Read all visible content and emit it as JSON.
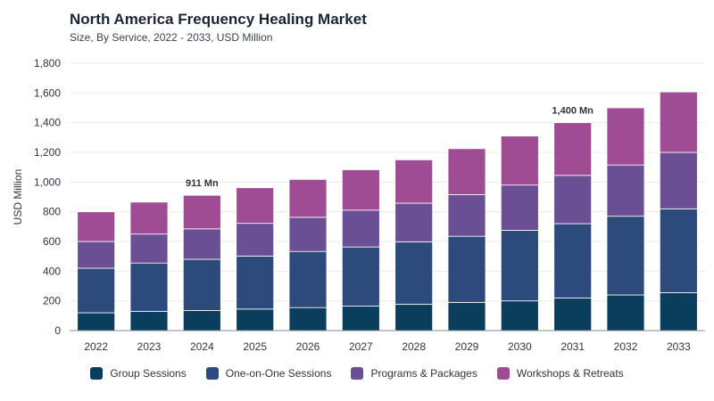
{
  "header": {
    "title": "North America Frequency Healing Market",
    "subtitle": "Size, By Service, 2022 - 2033, USD Million"
  },
  "chart_data": {
    "type": "bar",
    "stacked": true,
    "title": "North America Frequency Healing Market",
    "subtitle": "Size, By Service, 2022 - 2033, USD Million",
    "xlabel": "",
    "ylabel": "USD Million",
    "ylim": [
      0,
      1800
    ],
    "yticks": [
      0,
      200,
      400,
      600,
      800,
      1000,
      1200,
      1400,
      1600,
      1800
    ],
    "ytick_labels": [
      "0",
      "200",
      "400",
      "600",
      "800",
      "1,000",
      "1,200",
      "1,400",
      "1,600",
      "1,800"
    ],
    "grid": true,
    "legend_position": "bottom",
    "categories": [
      "2022",
      "2023",
      "2024",
      "2025",
      "2026",
      "2027",
      "2028",
      "2029",
      "2030",
      "2031",
      "2032",
      "2033"
    ],
    "series": [
      {
        "name": "Group Sessions",
        "color": "#0b3d5c",
        "values": [
          120,
          130,
          135,
          145,
          155,
          165,
          178,
          190,
          200,
          220,
          240,
          255
        ]
      },
      {
        "name": "One-on-One Sessions",
        "color": "#2d4a7c",
        "values": [
          300,
          325,
          345,
          357,
          378,
          398,
          420,
          445,
          475,
          500,
          530,
          565
        ]
      },
      {
        "name": "Programs & Packages",
        "color": "#6a4f94",
        "values": [
          180,
          195,
          205,
          220,
          230,
          248,
          260,
          280,
          305,
          325,
          345,
          380
        ]
      },
      {
        "name": "Workshops & Retreats",
        "color": "#a04c94",
        "values": [
          200,
          215,
          226,
          240,
          255,
          272,
          292,
          310,
          330,
          355,
          385,
          407
        ]
      }
    ],
    "annotations": [
      {
        "category": "2024",
        "text": "911 Mn"
      },
      {
        "category": "2031",
        "text": "1,400 Mn"
      }
    ]
  }
}
